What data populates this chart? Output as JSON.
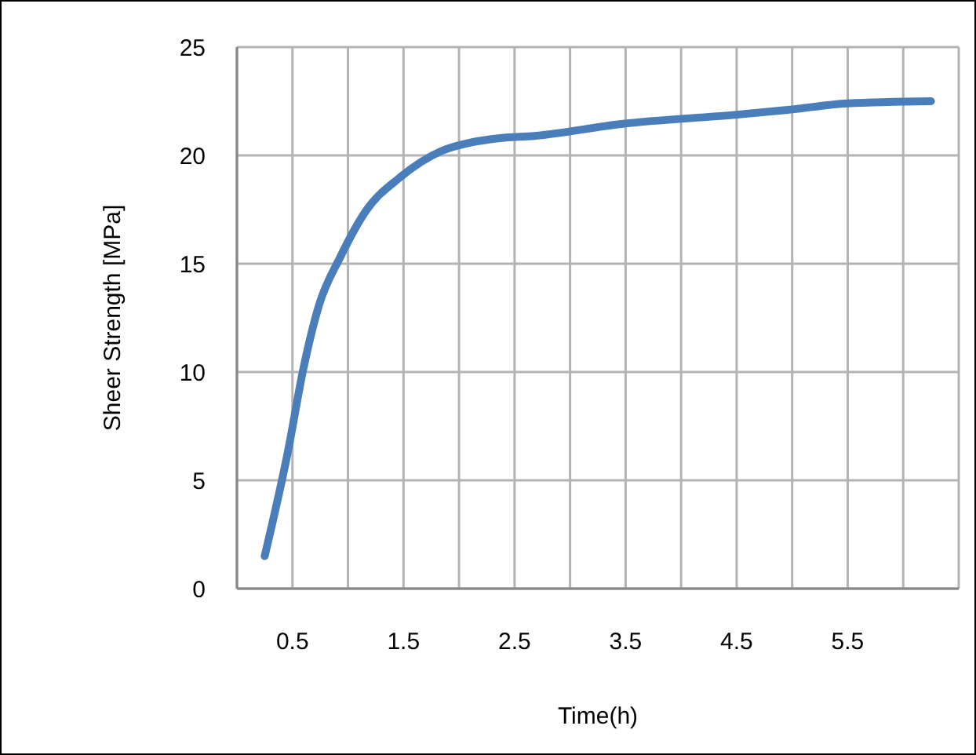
{
  "chart_data": {
    "type": "line",
    "xlabel": "Time(h)",
    "ylabel": "Sheer Strength [MPa]",
    "x": [
      0.25,
      0.46,
      0.6,
      0.74,
      0.93,
      1.17,
      1.46,
      1.84,
      2.11,
      2.37,
      2.68,
      3.46,
      4.5,
      4.96,
      5.5,
      6.25
    ],
    "series": [
      {
        "color": "#4a7ebb",
        "values": [
          1.5,
          6.35,
          10.2,
          13.1,
          15.3,
          17.5,
          18.95,
          20.2,
          20.6,
          20.8,
          20.9,
          21.45,
          21.88,
          22.1,
          22.4,
          22.5
        ]
      }
    ],
    "xlim": [
      0,
      6.5
    ],
    "xticks": [
      {
        "value": 0,
        "label": null
      },
      0.5,
      {
        "value": 1,
        "label": null
      },
      1.5,
      {
        "value": 2,
        "label": null
      },
      2.5,
      {
        "value": 3,
        "label": null
      },
      3.5,
      {
        "value": 4,
        "label": null
      },
      4.5,
      {
        "value": 5,
        "label": null
      },
      5.5,
      {
        "value": 6,
        "label": null
      },
      {
        "value": 6.5,
        "label": null
      }
    ],
    "ylim": [
      0,
      25
    ],
    "yticks": [
      0,
      5,
      10,
      15,
      20,
      25
    ],
    "grid": true,
    "marker": "none",
    "line_style": "solid"
  }
}
